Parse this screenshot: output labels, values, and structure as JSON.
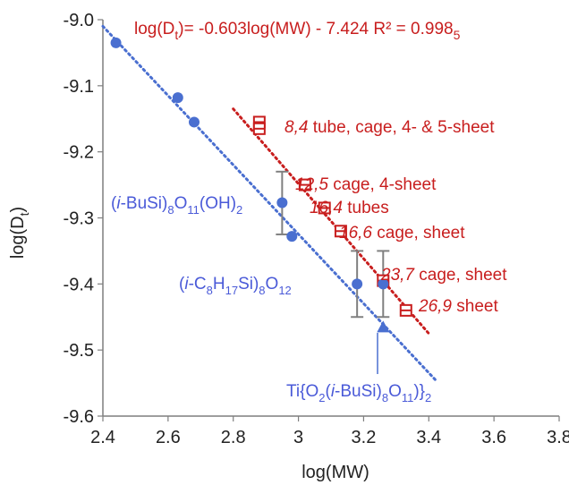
{
  "chart_data": {
    "type": "scatter",
    "title": "",
    "xlabel": "log(MW)",
    "ylabel": "log(D_t)",
    "xlim": [
      2.4,
      3.8
    ],
    "ylim": [
      -9.6,
      -9.0
    ],
    "xticks": [
      2.4,
      2.6,
      2.8,
      3.0,
      3.2,
      3.4,
      3.6,
      3.8
    ],
    "yticks": [
      -9.0,
      -9.1,
      -9.2,
      -9.3,
      -9.4,
      -9.5,
      -9.6
    ],
    "xtick_labels": [
      "2.4",
      "2.6",
      "2.8",
      "3",
      "3.2",
      "3.4",
      "3.6",
      "3.8"
    ],
    "ytick_labels": [
      "-9.0",
      "-9.1",
      "-9.2",
      "-9.3",
      "-9.4",
      "-9.5",
      "-9.6"
    ],
    "grid": false,
    "colors": {
      "red": "#c81e1e",
      "blue": "#4a6fd0",
      "blue_text": "#4a5ad8",
      "error_bar": "#808080"
    },
    "equation": "log(Dt)= -0.603log(MW) - 7.424 R² = 0.9985",
    "series": [
      {
        "marker": "square-open",
        "color": "#c81e1e",
        "points": [
          {
            "x": 2.88,
            "y": -9.155
          },
          {
            "x": 2.88,
            "y": -9.165
          },
          {
            "x": 3.02,
            "y": -9.25
          },
          {
            "x": 3.08,
            "y": -9.285
          },
          {
            "x": 3.13,
            "y": -9.32
          },
          {
            "x": 3.26,
            "y": -9.395
          },
          {
            "x": 3.33,
            "y": -9.44
          }
        ],
        "trendline": {
          "x": [
            2.8,
            3.4
          ],
          "y": [
            -9.135,
            -9.475
          ]
        }
      },
      {
        "marker": "circle",
        "color": "#4a6fd0",
        "points": [
          {
            "x": 2.44,
            "y": -9.035
          },
          {
            "x": 2.63,
            "y": -9.118
          },
          {
            "x": 2.68,
            "y": -9.155
          },
          {
            "x": 2.95,
            "y": -9.277
          },
          {
            "x": 2.98,
            "y": -9.328
          },
          {
            "x": 3.18,
            "y": -9.4
          },
          {
            "x": 3.26,
            "y": -9.4
          }
        ],
        "trendline": {
          "x": [
            2.4,
            3.42
          ],
          "y": [
            -9.01,
            -9.545
          ]
        }
      }
    ],
    "error_bars": [
      {
        "x": 2.95,
        "y": -9.277,
        "low": -9.325,
        "high": -9.23
      },
      {
        "x": 3.18,
        "y": -9.4,
        "low": -9.45,
        "high": -9.35
      },
      {
        "x": 3.26,
        "y": -9.4,
        "low": -9.45,
        "high": -9.35
      }
    ],
    "red_labels": [
      {
        "italic": "8,4",
        "rest": " tube, cage, 4- & 5-sheet"
      },
      {
        "italic": "12,5",
        "rest": " cage, 4-sheet"
      },
      {
        "italic": "16,4",
        "rest": " tubes"
      },
      {
        "italic": "16,6",
        "rest": " cage, sheet"
      },
      {
        "italic": "23,7",
        "rest": " cage, sheet"
      },
      {
        "italic": "26,9",
        "rest": " sheet"
      }
    ],
    "blue_labels": {
      "butyl_oh": "(i-BuSi)8O11(OH)2",
      "octyl": "(i-C8H17Si)8O12",
      "titanium": "Ti{O2(i-BuSi)8O11)}2"
    },
    "titanium_marker": {
      "x": 3.26,
      "y": -9.465,
      "marker": "triangle"
    }
  }
}
